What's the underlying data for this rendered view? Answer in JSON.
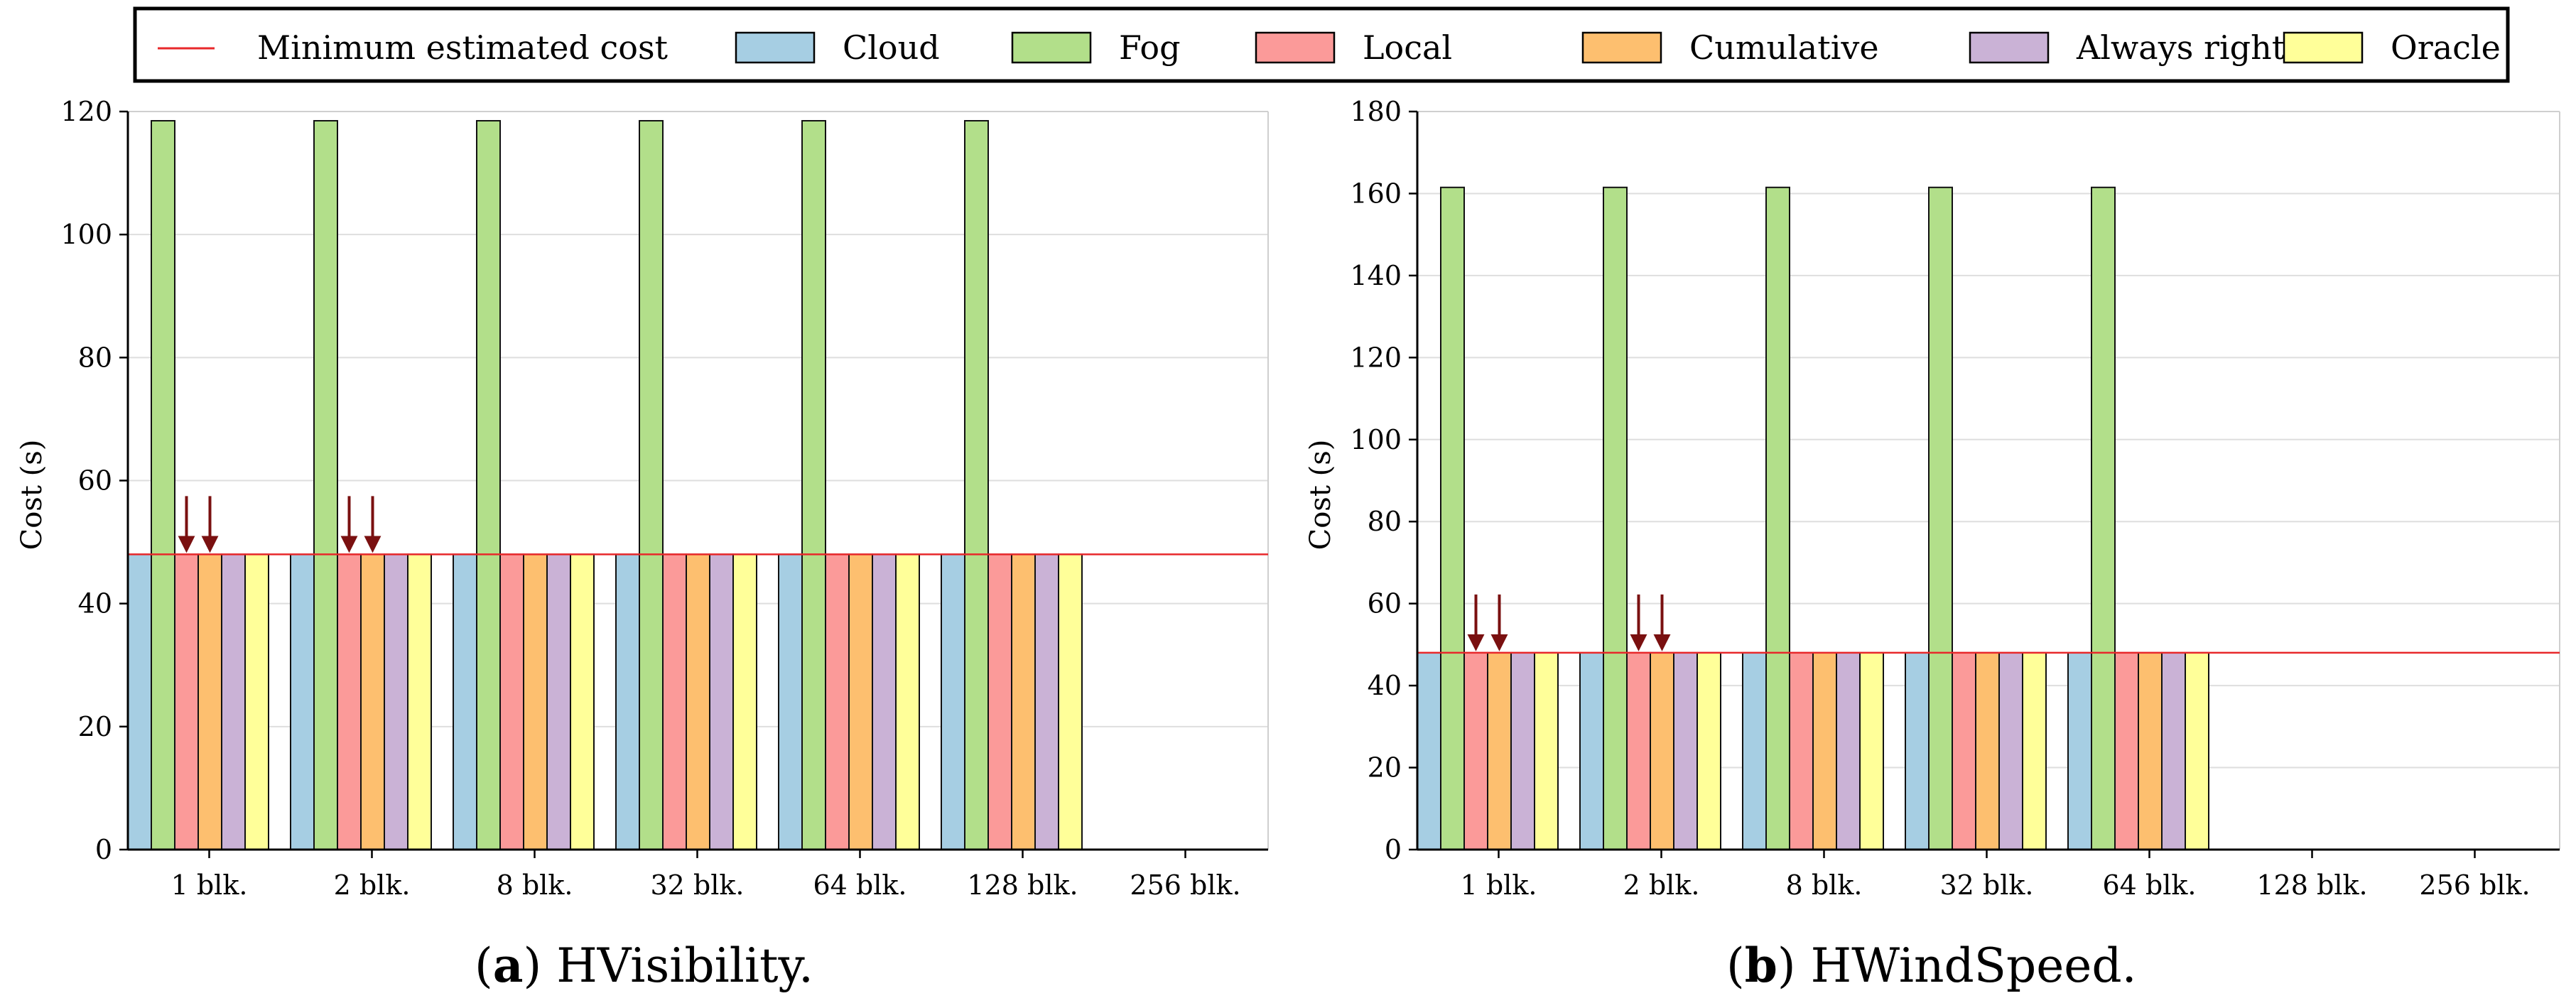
{
  "legend": {
    "entries": [
      {
        "label": "Minimum estimated cost",
        "kind": "line",
        "color": "#e8282b"
      },
      {
        "label": "Cloud",
        "kind": "box",
        "color": "#a6cee3"
      },
      {
        "label": "Fog",
        "kind": "box",
        "color": "#b2df8a"
      },
      {
        "label": "Local",
        "kind": "box",
        "color": "#fb9a99"
      },
      {
        "label": "Cumulative",
        "kind": "box",
        "color": "#fdbf6f"
      },
      {
        "label": "Always right",
        "kind": "box",
        "color": "#cab2d6"
      },
      {
        "label": "Oracle",
        "kind": "box",
        "color": "#ffff99"
      }
    ]
  },
  "captions": [
    {
      "letter": "a",
      "text": "HVisibility."
    },
    {
      "letter": "b",
      "text": "HWindSpeed."
    }
  ],
  "chart_data": [
    {
      "type": "bar",
      "title": "HVisibility.",
      "ylabel": "Cost (s)",
      "xlabel": "",
      "ylim": [
        0,
        120
      ],
      "yticks": [
        0,
        20,
        40,
        60,
        80,
        100,
        120
      ],
      "categories": [
        "1 blk.",
        "2 blk.",
        "8 blk.",
        "32 blk.",
        "64 blk.",
        "128 blk.",
        "256 blk."
      ],
      "min_estimated_cost": 48,
      "series": [
        {
          "name": "Cloud",
          "color": "#a6cee3",
          "values": [
            48,
            48,
            48,
            48,
            48,
            48,
            null
          ]
        },
        {
          "name": "Fog",
          "color": "#b2df8a",
          "values": [
            118.5,
            118.5,
            118.5,
            118.5,
            118.5,
            118.5,
            null
          ]
        },
        {
          "name": "Local",
          "color": "#fb9a99",
          "values": [
            48,
            48,
            48,
            48,
            48,
            48,
            null
          ]
        },
        {
          "name": "Cumulative",
          "color": "#fdbf6f",
          "values": [
            48,
            48,
            48,
            48,
            48,
            48,
            null
          ]
        },
        {
          "name": "Always right",
          "color": "#cab2d6",
          "values": [
            48,
            48,
            48,
            48,
            48,
            48,
            null
          ]
        },
        {
          "name": "Oracle",
          "color": "#ffff99",
          "values": [
            48,
            48,
            48,
            48,
            48,
            48,
            null
          ]
        }
      ],
      "annotations": [
        {
          "type": "arrow",
          "category": "1 blk.",
          "series": "Local"
        },
        {
          "type": "arrow",
          "category": "1 blk.",
          "series": "Cumulative"
        },
        {
          "type": "arrow",
          "category": "2 blk.",
          "series": "Local"
        },
        {
          "type": "arrow",
          "category": "2 blk.",
          "series": "Cumulative"
        }
      ]
    },
    {
      "type": "bar",
      "title": "HWindSpeed.",
      "ylabel": "Cost (s)",
      "xlabel": "",
      "ylim": [
        0,
        180
      ],
      "yticks": [
        0,
        20,
        40,
        60,
        80,
        100,
        120,
        140,
        160,
        180
      ],
      "categories": [
        "1 blk.",
        "2 blk.",
        "8 blk.",
        "32 blk.",
        "64 blk.",
        "128 blk.",
        "256 blk."
      ],
      "min_estimated_cost": 48,
      "series": [
        {
          "name": "Cloud",
          "color": "#a6cee3",
          "values": [
            48,
            48,
            48,
            48,
            48,
            null,
            null
          ]
        },
        {
          "name": "Fog",
          "color": "#b2df8a",
          "values": [
            161.5,
            161.5,
            161.5,
            161.5,
            161.5,
            null,
            null
          ]
        },
        {
          "name": "Local",
          "color": "#fb9a99",
          "values": [
            48,
            48,
            48,
            48,
            48,
            null,
            null
          ]
        },
        {
          "name": "Cumulative",
          "color": "#fdbf6f",
          "values": [
            48,
            48,
            48,
            48,
            48,
            null,
            null
          ]
        },
        {
          "name": "Always right",
          "color": "#cab2d6",
          "values": [
            48,
            48,
            48,
            48,
            48,
            null,
            null
          ]
        },
        {
          "name": "Oracle",
          "color": "#ffff99",
          "values": [
            48,
            48,
            48,
            48,
            48,
            null,
            null
          ]
        }
      ],
      "annotations": [
        {
          "type": "arrow",
          "category": "1 blk.",
          "series": "Local"
        },
        {
          "type": "arrow",
          "category": "1 blk.",
          "series": "Cumulative"
        },
        {
          "type": "arrow",
          "category": "2 blk.",
          "series": "Local"
        },
        {
          "type": "arrow",
          "category": "2 blk.",
          "series": "Cumulative"
        }
      ]
    }
  ]
}
